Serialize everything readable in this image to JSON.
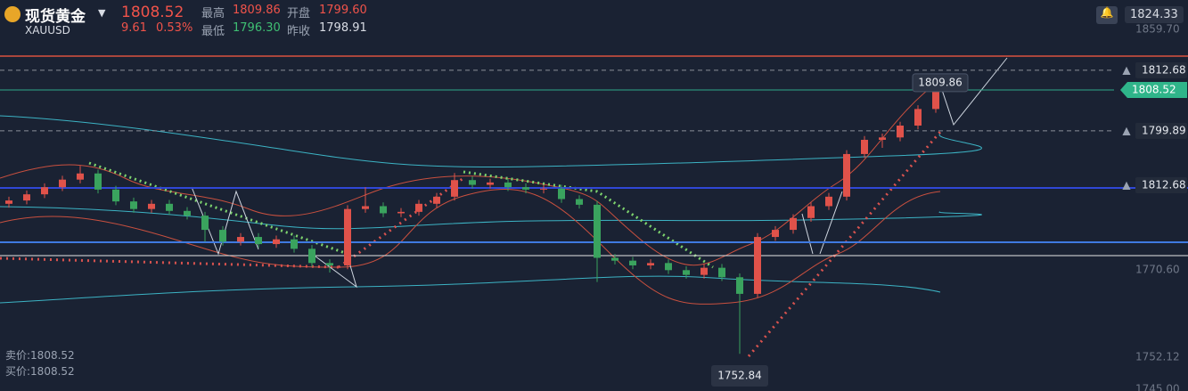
{
  "header": {
    "name": "现货黄金",
    "symbol": "XAUUSD",
    "price": "1808.52",
    "change": "9.61",
    "change_pct": "0.53%",
    "stats": [
      {
        "label": "最高",
        "value": "1809.86"
      },
      {
        "label": "开盘",
        "value": "1799.60"
      },
      {
        "label": "最低",
        "value": "1796.30"
      },
      {
        "label": "昨收",
        "value": "1798.91"
      }
    ]
  },
  "alert_price": "1824.33",
  "quote": {
    "sell": "卖价:1808.52",
    "buy": "买价:1808.52"
  },
  "side_labels": [
    "1859.70",
    "1812.68",
    "1770.60",
    "1752.12",
    "1745.00"
  ],
  "chart_data": {
    "type": "candlestick",
    "categories": [
      null,
      null,
      null,
      null,
      null,
      null,
      null,
      null,
      null,
      null,
      null,
      null,
      null,
      null,
      null,
      null,
      null,
      null,
      null,
      null,
      null,
      null,
      null,
      null,
      null,
      null,
      null,
      null,
      null,
      null,
      null,
      null,
      null,
      null,
      null,
      null,
      null,
      null,
      null,
      null,
      null,
      null,
      null,
      null,
      null,
      null,
      null,
      null,
      null,
      null,
      null,
      null,
      null
    ],
    "open": [
      1784.5,
      1785.2,
      1786.5,
      1788.0,
      1789.6,
      1790.9,
      1787.5,
      1785.0,
      1783.4,
      1784.5,
      1783.0,
      1782.0,
      1779.0,
      1776.5,
      1777.5,
      1776.0,
      1777.0,
      1775.0,
      1772.0,
      1771.5,
      1783.4,
      1784.0,
      1782.5,
      1782.8,
      1784.5,
      1786.0,
      1789.5,
      1788.5,
      1789.0,
      1788.0,
      1787.5,
      1787.7,
      1785.5,
      1784.3,
      1773.1,
      1772.5,
      1771.5,
      1772.0,
      1770.5,
      1769.5,
      1771.0,
      1769.0,
      1765.5,
      1777.5,
      1779.0,
      1781.5,
      1784.0,
      1786.0,
      1795.0,
      1798.0,
      1798.5,
      1801.0,
      1804.5
    ],
    "high": [
      1786.0,
      1787.3,
      1788.8,
      1790.4,
      1792.5,
      1791.7,
      1788.3,
      1785.8,
      1785.3,
      1785.3,
      1783.8,
      1782.8,
      1779.8,
      1778.3,
      1778.3,
      1777.8,
      1777.8,
      1775.8,
      1772.8,
      1784.2,
      1788.0,
      1784.8,
      1783.6,
      1785.3,
      1786.8,
      1791.0,
      1790.3,
      1789.8,
      1789.8,
      1788.8,
      1788.5,
      1788.5,
      1786.3,
      1785.1,
      1773.9,
      1773.3,
      1772.8,
      1772.8,
      1771.3,
      1771.8,
      1771.8,
      1769.8,
      1778.3,
      1779.8,
      1782.3,
      1784.8,
      1786.8,
      1795.8,
      1798.8,
      1799.3,
      1801.8,
      1805.3,
      1809.86
    ],
    "low": [
      1783.7,
      1784.4,
      1785.7,
      1787.2,
      1788.8,
      1786.7,
      1784.2,
      1782.6,
      1782.6,
      1782.2,
      1781.2,
      1776.5,
      1775.7,
      1775.7,
      1775.2,
      1775.2,
      1774.2,
      1771.2,
      1770.0,
      1770.7,
      1782.6,
      1781.7,
      1781.7,
      1782.0,
      1783.7,
      1785.2,
      1787.7,
      1787.7,
      1787.2,
      1786.7,
      1786.7,
      1784.7,
      1783.5,
      1768.0,
      1771.7,
      1770.7,
      1770.7,
      1769.7,
      1768.7,
      1768.7,
      1768.2,
      1752.84,
      1764.7,
      1776.7,
      1778.2,
      1780.7,
      1783.2,
      1785.2,
      1794.2,
      1796.3,
      1797.7,
      1800.2,
      1803.7
    ],
    "close": [
      1785.2,
      1786.5,
      1788.0,
      1789.6,
      1790.9,
      1787.5,
      1785.0,
      1783.4,
      1784.5,
      1783.0,
      1782.0,
      1779.0,
      1776.5,
      1777.5,
      1776.0,
      1777.0,
      1775.0,
      1772.0,
      1771.5,
      1783.4,
      1784.0,
      1782.5,
      1782.8,
      1784.5,
      1786.0,
      1789.5,
      1788.5,
      1789.0,
      1788.0,
      1787.5,
      1787.7,
      1785.5,
      1784.3,
      1773.1,
      1772.5,
      1771.5,
      1772.0,
      1770.5,
      1769.5,
      1771.0,
      1769.0,
      1765.5,
      1777.5,
      1779.0,
      1781.5,
      1784.0,
      1786.0,
      1795.0,
      1798.0,
      1798.5,
      1801.0,
      1804.5,
      1808.52
    ],
    "ylim": [
      1745,
      1827.5
    ],
    "up_color": "#e0524a",
    "down_color": "#3aa35e",
    "levels": [
      1812.68,
      1799.89
    ],
    "last_price": 1808.52,
    "high_label": 1809.86,
    "low_label": 1752.84
  }
}
